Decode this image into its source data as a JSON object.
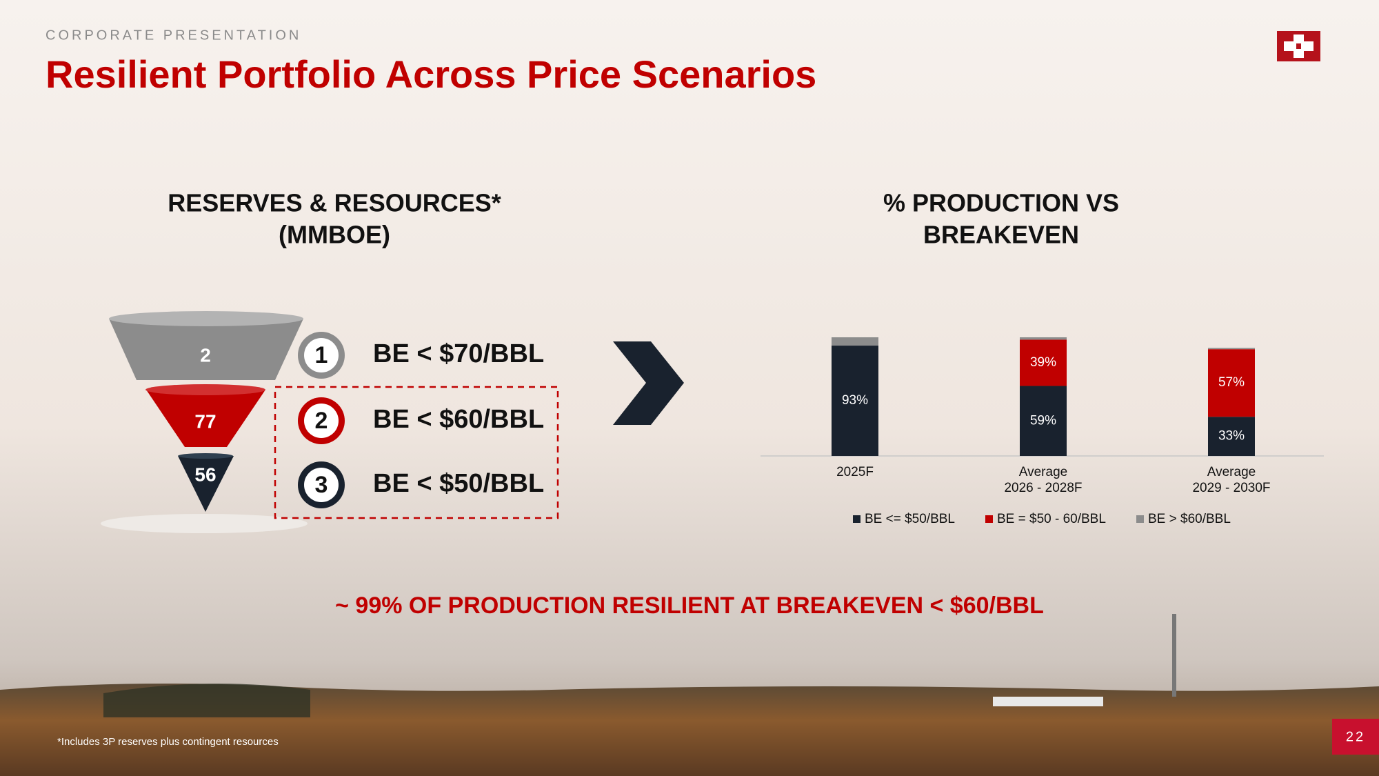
{
  "header": {
    "kicker": "CORPORATE PRESENTATION",
    "title": "Resilient Portfolio Across Price Scenarios"
  },
  "left_heading": [
    "RESERVES & RESOURCES*",
    "(MMBOE)"
  ],
  "right_heading": [
    "% PRODUCTION VS",
    "BREAKEVEN"
  ],
  "funnel": [
    {
      "value": 2,
      "rank": "1",
      "label": "BE < $70/BBL"
    },
    {
      "value": 77,
      "rank": "2",
      "label": "BE < $60/BBL"
    },
    {
      "value": 56,
      "rank": "3",
      "label": "BE < $50/BBL"
    }
  ],
  "chart_data": {
    "type": "stacked_bar",
    "categories": [
      "2025F",
      "Average\n2026 - 2028F",
      "Average\n2029 - 2030F"
    ],
    "series": [
      {
        "name": "BE <= $50/BBL",
        "color": "#19222e",
        "values": [
          93,
          59,
          33
        ],
        "value_labels": [
          "93%",
          "59%",
          "33%"
        ]
      },
      {
        "name": "BE = $50 - 60/BBL",
        "color": "#c00000",
        "values": [
          0,
          39,
          57
        ],
        "value_labels": [
          null,
          "39%",
          "57%"
        ]
      },
      {
        "name": "BE > $60/BBL",
        "color": "#8c8c8c",
        "values": [
          7,
          2,
          1
        ]
      }
    ]
  },
  "tagline": "~ 99% OF PRODUCTION RESILIENT AT BREAKEVEN < $60/BBL",
  "footnote": "*Includes 3P reserves plus contingent resources",
  "page_number": "22"
}
